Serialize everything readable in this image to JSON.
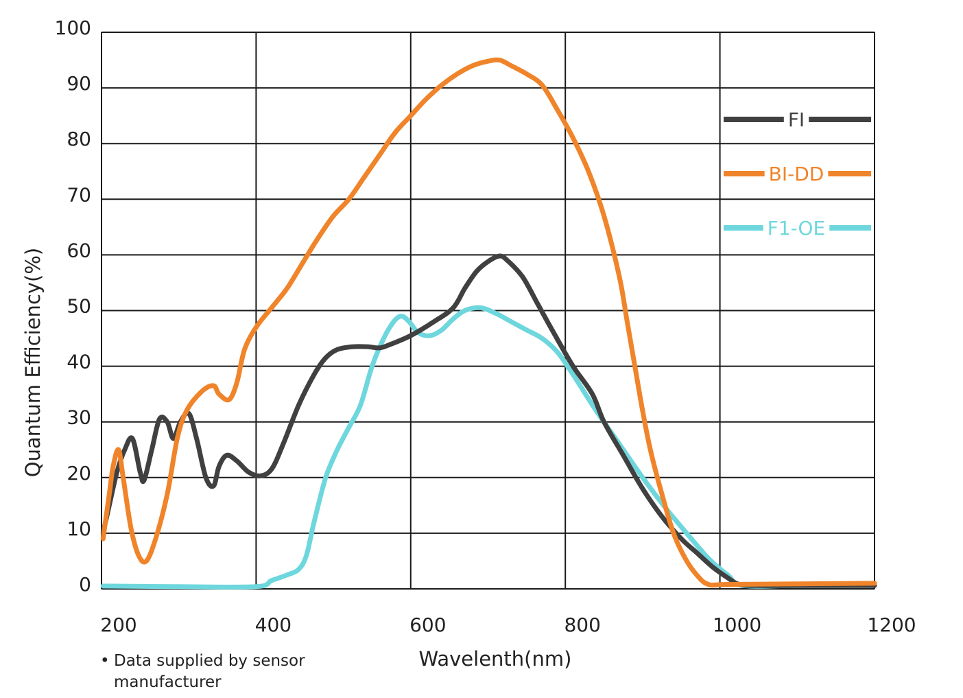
{
  "chart_data": {
    "type": "line",
    "xlabel": "Wavelenth(nm)",
    "ylabel": "Quantum Efficiency(%)",
    "xlim": [
      200,
      1200
    ],
    "ylim": [
      0,
      100
    ],
    "x_ticks": [
      200,
      400,
      600,
      800,
      1000,
      1200
    ],
    "y_ticks": [
      0,
      10,
      20,
      30,
      40,
      50,
      60,
      70,
      80,
      90,
      100
    ],
    "grid": true,
    "legend_position": "top-right",
    "series": [
      {
        "name": "FI",
        "color": "#404040",
        "points": [
          [
            202,
            10
          ],
          [
            210,
            15
          ],
          [
            220,
            21
          ],
          [
            230,
            25
          ],
          [
            240,
            27
          ],
          [
            250,
            21
          ],
          [
            255,
            19.5
          ],
          [
            265,
            25
          ],
          [
            275,
            30.5
          ],
          [
            285,
            30
          ],
          [
            293,
            27
          ],
          [
            302,
            30
          ],
          [
            313,
            31.5
          ],
          [
            323,
            27
          ],
          [
            335,
            20
          ],
          [
            345,
            18.5
          ],
          [
            352,
            22
          ],
          [
            362,
            24
          ],
          [
            375,
            23
          ],
          [
            390,
            21
          ],
          [
            405,
            20.3
          ],
          [
            420,
            21.5
          ],
          [
            435,
            26
          ],
          [
            455,
            33
          ],
          [
            475,
            38.5
          ],
          [
            490,
            41.5
          ],
          [
            505,
            43
          ],
          [
            525,
            43.5
          ],
          [
            545,
            43.5
          ],
          [
            560,
            43.3
          ],
          [
            575,
            44
          ],
          [
            600,
            45.5
          ],
          [
            630,
            48
          ],
          [
            655,
            50.5
          ],
          [
            670,
            54
          ],
          [
            685,
            57
          ],
          [
            700,
            58.8
          ],
          [
            715,
            59.8
          ],
          [
            725,
            59
          ],
          [
            745,
            56
          ],
          [
            765,
            51
          ],
          [
            785,
            46
          ],
          [
            810,
            40
          ],
          [
            835,
            35
          ],
          [
            850,
            30
          ],
          [
            875,
            24
          ],
          [
            900,
            18
          ],
          [
            925,
            13
          ],
          [
            950,
            9
          ],
          [
            970,
            6.5
          ],
          [
            990,
            4
          ],
          [
            1010,
            2
          ],
          [
            1025,
            0.8
          ],
          [
            1050,
            0.6
          ],
          [
            1100,
            0.6
          ],
          [
            1200,
            0.6
          ]
        ]
      },
      {
        "name": "BI-DD",
        "color": "#F0842A",
        "points": [
          [
            202,
            9
          ],
          [
            210,
            17
          ],
          [
            215,
            22
          ],
          [
            222,
            25
          ],
          [
            228,
            20
          ],
          [
            238,
            11
          ],
          [
            248,
            6
          ],
          [
            258,
            5
          ],
          [
            270,
            9
          ],
          [
            285,
            17
          ],
          [
            298,
            27
          ],
          [
            310,
            32
          ],
          [
            330,
            35.5
          ],
          [
            345,
            36.5
          ],
          [
            352,
            35
          ],
          [
            365,
            34
          ],
          [
            375,
            37
          ],
          [
            385,
            43
          ],
          [
            400,
            47
          ],
          [
            420,
            50.5
          ],
          [
            440,
            54
          ],
          [
            460,
            58.5
          ],
          [
            480,
            63
          ],
          [
            500,
            67
          ],
          [
            520,
            70
          ],
          [
            540,
            74
          ],
          [
            560,
            78
          ],
          [
            580,
            82
          ],
          [
            600,
            85
          ],
          [
            620,
            88
          ],
          [
            640,
            90.5
          ],
          [
            660,
            92.5
          ],
          [
            680,
            94
          ],
          [
            700,
            94.8
          ],
          [
            715,
            95
          ],
          [
            730,
            94
          ],
          [
            750,
            92.5
          ],
          [
            770,
            90.5
          ],
          [
            790,
            86
          ],
          [
            810,
            81
          ],
          [
            830,
            75
          ],
          [
            850,
            67
          ],
          [
            870,
            56
          ],
          [
            880,
            48
          ],
          [
            890,
            40
          ],
          [
            900,
            32
          ],
          [
            910,
            25
          ],
          [
            925,
            17
          ],
          [
            940,
            10
          ],
          [
            955,
            5.5
          ],
          [
            970,
            2.5
          ],
          [
            985,
            0.8
          ],
          [
            1010,
            0.8
          ],
          [
            1100,
            0.9
          ],
          [
            1200,
            1
          ]
        ]
      },
      {
        "name": "F1-OE",
        "color": "#6ED7DD",
        "points": [
          [
            202,
            0.5
          ],
          [
            300,
            0.4
          ],
          [
            400,
            0.4
          ],
          [
            420,
            1.5
          ],
          [
            440,
            2.5
          ],
          [
            455,
            3.5
          ],
          [
            465,
            6
          ],
          [
            475,
            12
          ],
          [
            490,
            20
          ],
          [
            505,
            25
          ],
          [
            520,
            29
          ],
          [
            535,
            33
          ],
          [
            550,
            40
          ],
          [
            565,
            45
          ],
          [
            578,
            48
          ],
          [
            588,
            49
          ],
          [
            598,
            48
          ],
          [
            610,
            46
          ],
          [
            625,
            45.5
          ],
          [
            640,
            46.5
          ],
          [
            655,
            48.5
          ],
          [
            670,
            50
          ],
          [
            690,
            50.5
          ],
          [
            710,
            49.5
          ],
          [
            730,
            48
          ],
          [
            750,
            46.5
          ],
          [
            770,
            45
          ],
          [
            790,
            42.5
          ],
          [
            810,
            38.5
          ],
          [
            840,
            32
          ],
          [
            870,
            26
          ],
          [
            900,
            20
          ],
          [
            930,
            14.5
          ],
          [
            960,
            9.5
          ],
          [
            985,
            5.5
          ],
          [
            1010,
            2.5
          ],
          [
            1030,
            0.6
          ],
          [
            1100,
            0.6
          ],
          [
            1200,
            0.6
          ]
        ]
      }
    ],
    "annotation": "Data supplied by sensor manufacturer"
  }
}
